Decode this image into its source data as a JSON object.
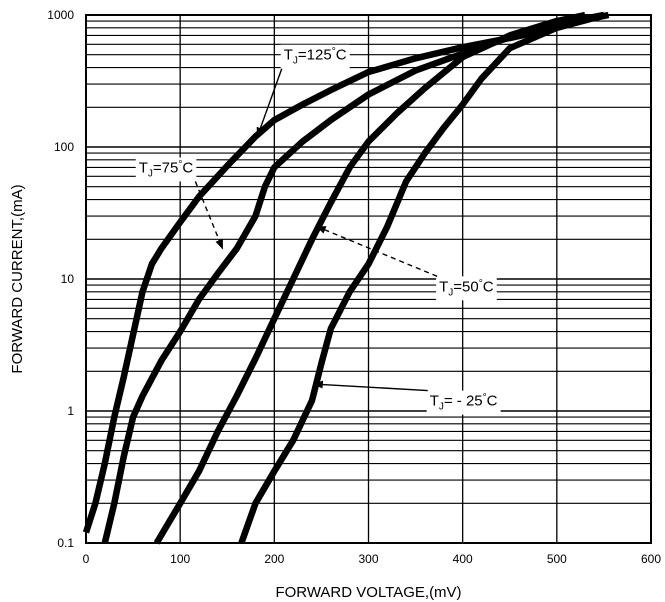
{
  "chart_data": {
    "type": "line",
    "title": "",
    "xlabel": "FORWARD VOLTAGE,(mV)",
    "ylabel": "FORWARD CURRENT,(mA)",
    "xlim": [
      0,
      600
    ],
    "ylim": [
      0.1,
      1000
    ],
    "yscale": "log",
    "grid": true,
    "x_ticks": [
      "0",
      "100",
      "200",
      "300",
      "400",
      "500",
      "600"
    ],
    "y_ticks": [
      "0.1",
      "1",
      "10",
      "100",
      "1000"
    ],
    "series": [
      {
        "name": "TJ=125°C",
        "label_parts": [
          "T",
          "J",
          "=125",
          "°",
          "C"
        ],
        "points": [
          [
            0,
            0.12
          ],
          [
            10,
            0.2
          ],
          [
            20,
            0.4
          ],
          [
            30,
            0.9
          ],
          [
            40,
            1.8
          ],
          [
            50,
            3.8
          ],
          [
            60,
            8
          ],
          [
            70,
            13
          ],
          [
            80,
            17
          ],
          [
            100,
            27
          ],
          [
            120,
            42
          ],
          [
            150,
            72
          ],
          [
            180,
            120
          ],
          [
            200,
            160
          ],
          [
            230,
            210
          ],
          [
            260,
            270
          ],
          [
            300,
            370
          ],
          [
            350,
            470
          ],
          [
            400,
            570
          ],
          [
            450,
            670
          ],
          [
            500,
            800
          ],
          [
            540,
            950
          ],
          [
            555,
            1000
          ]
        ]
      },
      {
        "name": "TJ=75°C",
        "label_parts": [
          "T",
          "J",
          "=75",
          "°",
          "C"
        ],
        "points": [
          [
            20,
            0.1
          ],
          [
            30,
            0.2
          ],
          [
            40,
            0.45
          ],
          [
            50,
            0.9
          ],
          [
            60,
            1.3
          ],
          [
            80,
            2.4
          ],
          [
            100,
            4
          ],
          [
            120,
            7
          ],
          [
            140,
            11
          ],
          [
            160,
            17
          ],
          [
            180,
            30
          ],
          [
            190,
            50
          ],
          [
            200,
            70
          ],
          [
            230,
            110
          ],
          [
            260,
            160
          ],
          [
            300,
            250
          ],
          [
            350,
            380
          ],
          [
            400,
            510
          ],
          [
            450,
            680
          ],
          [
            500,
            850
          ],
          [
            550,
            1000
          ]
        ]
      },
      {
        "name": "TJ=50°C",
        "label_parts": [
          "T",
          "J",
          "=50",
          "°",
          "C"
        ],
        "points": [
          [
            75,
            0.1
          ],
          [
            100,
            0.2
          ],
          [
            120,
            0.35
          ],
          [
            140,
            0.7
          ],
          [
            160,
            1.3
          ],
          [
            180,
            2.5
          ],
          [
            200,
            5
          ],
          [
            220,
            10
          ],
          [
            240,
            20
          ],
          [
            260,
            38
          ],
          [
            280,
            70
          ],
          [
            300,
            110
          ],
          [
            330,
            180
          ],
          [
            360,
            280
          ],
          [
            400,
            480
          ],
          [
            450,
            700
          ],
          [
            500,
            900
          ],
          [
            530,
            1000
          ]
        ]
      },
      {
        "name": "TJ= - 25°C",
        "label_parts": [
          "T",
          "J",
          "= - 25",
          "°",
          "C"
        ],
        "points": [
          [
            165,
            0.1
          ],
          [
            180,
            0.2
          ],
          [
            200,
            0.35
          ],
          [
            220,
            0.6
          ],
          [
            240,
            1.2
          ],
          [
            250,
            2.3
          ],
          [
            260,
            4.2
          ],
          [
            280,
            8
          ],
          [
            300,
            13
          ],
          [
            320,
            25
          ],
          [
            340,
            55
          ],
          [
            360,
            90
          ],
          [
            380,
            140
          ],
          [
            400,
            210
          ],
          [
            420,
            330
          ],
          [
            450,
            560
          ],
          [
            500,
            800
          ],
          [
            550,
            1000
          ]
        ]
      }
    ],
    "annotations": [
      {
        "series_index": 0,
        "text_x": 210,
        "text_y": 500,
        "arrow_to_x": 182,
        "arrow_to_y": 120,
        "dashed": false
      },
      {
        "series_index": 1,
        "text_x": 56,
        "text_y": 70,
        "arrow_to_x": 145,
        "arrow_to_y": 17,
        "dashed": true
      },
      {
        "series_index": 2,
        "text_x": 375,
        "text_y": 8.8,
        "arrow_to_x": 245,
        "arrow_to_y": 25,
        "dashed": true
      },
      {
        "series_index": 3,
        "text_x": 365,
        "text_y": 1.2,
        "arrow_to_x": 242,
        "arrow_to_y": 1.6,
        "dashed": false
      }
    ],
    "colors": {
      "line": "#000000",
      "grid": "#000000",
      "background": "#ffffff"
    }
  }
}
